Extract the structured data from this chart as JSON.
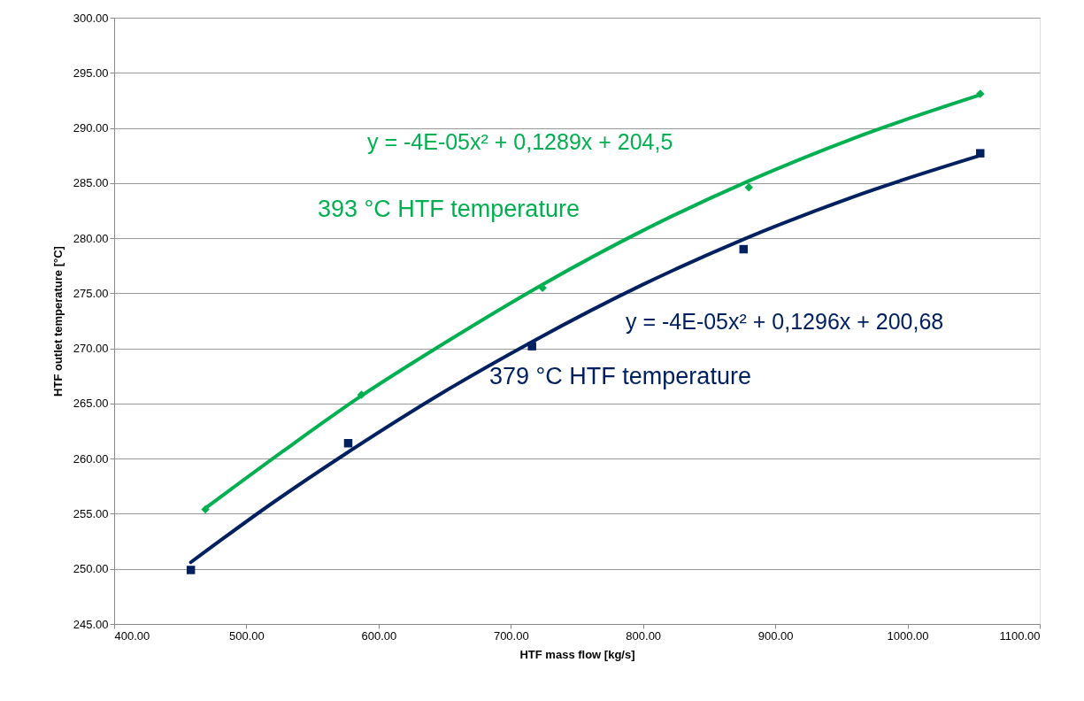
{
  "chart_data": {
    "type": "scatter",
    "xlabel": "HTF mass flow [kg/s]",
    "ylabel": "HTF outlet temperature [°C]",
    "xlim": [
      400,
      1100
    ],
    "xticks": [
      {
        "value": 400,
        "label": "400.00"
      },
      {
        "value": 500,
        "label": "500.00"
      },
      {
        "value": 600,
        "label": "600.00"
      },
      {
        "value": 700,
        "label": "700.00"
      },
      {
        "value": 800,
        "label": "800.00"
      },
      {
        "value": 900,
        "label": "900.00"
      },
      {
        "value": 1000,
        "label": "1000.00"
      },
      {
        "value": 1100,
        "label": "1100.00"
      }
    ],
    "ylim": [
      245,
      300
    ],
    "yticks": [
      {
        "value": 245,
        "label": "245.00"
      },
      {
        "value": 250,
        "label": "250.00"
      },
      {
        "value": 255,
        "label": "255.00"
      },
      {
        "value": 260,
        "label": "260.00"
      },
      {
        "value": 265,
        "label": "265.00"
      },
      {
        "value": 270,
        "label": "270.00"
      },
      {
        "value": 275,
        "label": "275.00"
      },
      {
        "value": 280,
        "label": "280.00"
      },
      {
        "value": 285,
        "label": "285.00"
      },
      {
        "value": 290,
        "label": "290.00"
      },
      {
        "value": 295,
        "label": "295.00"
      },
      {
        "value": 300,
        "label": "300.00"
      }
    ],
    "grid": "y",
    "series": [
      {
        "name": "393 °C HTF temperature",
        "marker": "diamond",
        "color": "#00b050",
        "x": [
          469,
          587,
          724,
          880,
          1055
        ],
        "values": [
          255.4,
          265.8,
          275.5,
          284.6,
          293.1
        ]
      },
      {
        "name": "379 °C HTF temperature",
        "marker": "square",
        "color": "#002060",
        "x": [
          458,
          577,
          716,
          876,
          1055
        ],
        "values": [
          249.9,
          261.4,
          270.2,
          279.0,
          287.7
        ]
      },
      {
        "type": "line",
        "line_style": "solid",
        "color": "#00b050",
        "x": [
          469,
          528,
          587,
          650,
          724,
          800,
          880,
          960,
          1055
        ],
        "values": [
          255.5,
          260.7,
          265.7,
          270.5,
          275.8,
          280.7,
          285.2,
          289.1,
          293.0
        ]
      },
      {
        "type": "line",
        "line_style": "solid",
        "color": "#002060",
        "x": [
          458,
          520,
          577,
          650,
          716,
          800,
          876,
          960,
          1055
        ],
        "values": [
          250.6,
          256.0,
          260.6,
          266.1,
          270.6,
          275.8,
          279.9,
          283.8,
          287.5
        ]
      }
    ],
    "annotations": [
      "y = -4E-05x² + 0,1289x + 204,5",
      "y = -4E-05x² + 0,1296x + 200,68"
    ]
  }
}
